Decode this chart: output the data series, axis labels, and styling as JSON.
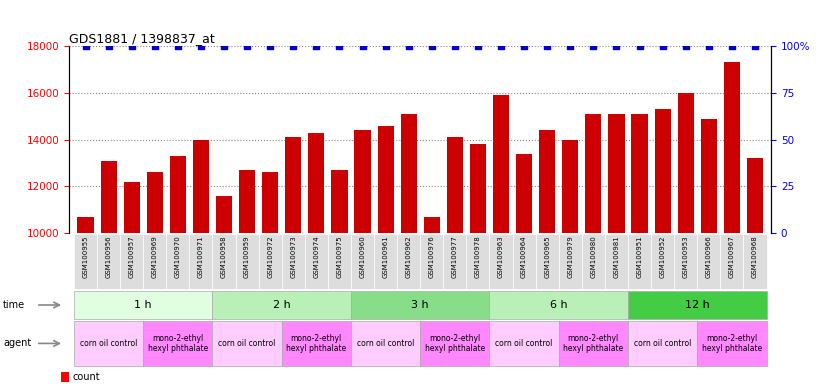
{
  "title": "GDS1881 / 1398837_at",
  "samples": [
    "GSM100955",
    "GSM100956",
    "GSM100957",
    "GSM100969",
    "GSM100970",
    "GSM100971",
    "GSM100958",
    "GSM100959",
    "GSM100972",
    "GSM100973",
    "GSM100974",
    "GSM100975",
    "GSM100960",
    "GSM100961",
    "GSM100962",
    "GSM100976",
    "GSM100977",
    "GSM100978",
    "GSM100963",
    "GSM100964",
    "GSM100965",
    "GSM100979",
    "GSM100980",
    "GSM100981",
    "GSM100951",
    "GSM100952",
    "GSM100953",
    "GSM100966",
    "GSM100967",
    "GSM100968"
  ],
  "values": [
    10700,
    13100,
    12200,
    12600,
    13300,
    14000,
    11600,
    12700,
    12600,
    14100,
    14300,
    12700,
    14400,
    14600,
    15100,
    10700,
    14100,
    13800,
    15900,
    13400,
    14400,
    14000,
    15100,
    15100,
    15100,
    15300,
    16000,
    14900,
    17300,
    13200
  ],
  "bar_color": "#CC0000",
  "percentile_color": "#0000CC",
  "ylim_left": [
    10000,
    18000
  ],
  "yticks_left": [
    10000,
    12000,
    14000,
    16000,
    18000
  ],
  "ylim_right": [
    0,
    100
  ],
  "yticks_right": [
    0,
    25,
    50,
    75,
    100
  ],
  "time_groups": [
    {
      "label": "1 h",
      "start": 0,
      "end": 6,
      "color": "#e0ffe0"
    },
    {
      "label": "2 h",
      "start": 6,
      "end": 12,
      "color": "#b8f0b8"
    },
    {
      "label": "3 h",
      "start": 12,
      "end": 18,
      "color": "#88dd88"
    },
    {
      "label": "6 h",
      "start": 18,
      "end": 24,
      "color": "#b8f0b8"
    },
    {
      "label": "12 h",
      "start": 24,
      "end": 30,
      "color": "#44cc44"
    }
  ],
  "agent_groups": [
    {
      "label": "corn oil control",
      "start": 0,
      "end": 3,
      "color": "#ffccff"
    },
    {
      "label": "mono-2-ethyl\nhexyl phthalate",
      "start": 3,
      "end": 6,
      "color": "#ff88ff"
    },
    {
      "label": "corn oil control",
      "start": 6,
      "end": 9,
      "color": "#ffccff"
    },
    {
      "label": "mono-2-ethyl\nhexyl phthalate",
      "start": 9,
      "end": 12,
      "color": "#ff88ff"
    },
    {
      "label": "corn oil control",
      "start": 12,
      "end": 15,
      "color": "#ffccff"
    },
    {
      "label": "mono-2-ethyl\nhexyl phthalate",
      "start": 15,
      "end": 18,
      "color": "#ff88ff"
    },
    {
      "label": "corn oil control",
      "start": 18,
      "end": 21,
      "color": "#ffccff"
    },
    {
      "label": "mono-2-ethyl\nhexyl phthalate",
      "start": 21,
      "end": 24,
      "color": "#ff88ff"
    },
    {
      "label": "corn oil control",
      "start": 24,
      "end": 27,
      "color": "#ffccff"
    },
    {
      "label": "mono-2-ethyl\nhexyl phthalate",
      "start": 27,
      "end": 30,
      "color": "#ff88ff"
    }
  ],
  "bg_color": "#ffffff",
  "grid_color": "#888888",
  "bar_width": 0.7,
  "xtick_bg": "#dddddd",
  "xtick_fontsize": 5.0,
  "ytick_fontsize": 7.5,
  "title_fontsize": 9
}
